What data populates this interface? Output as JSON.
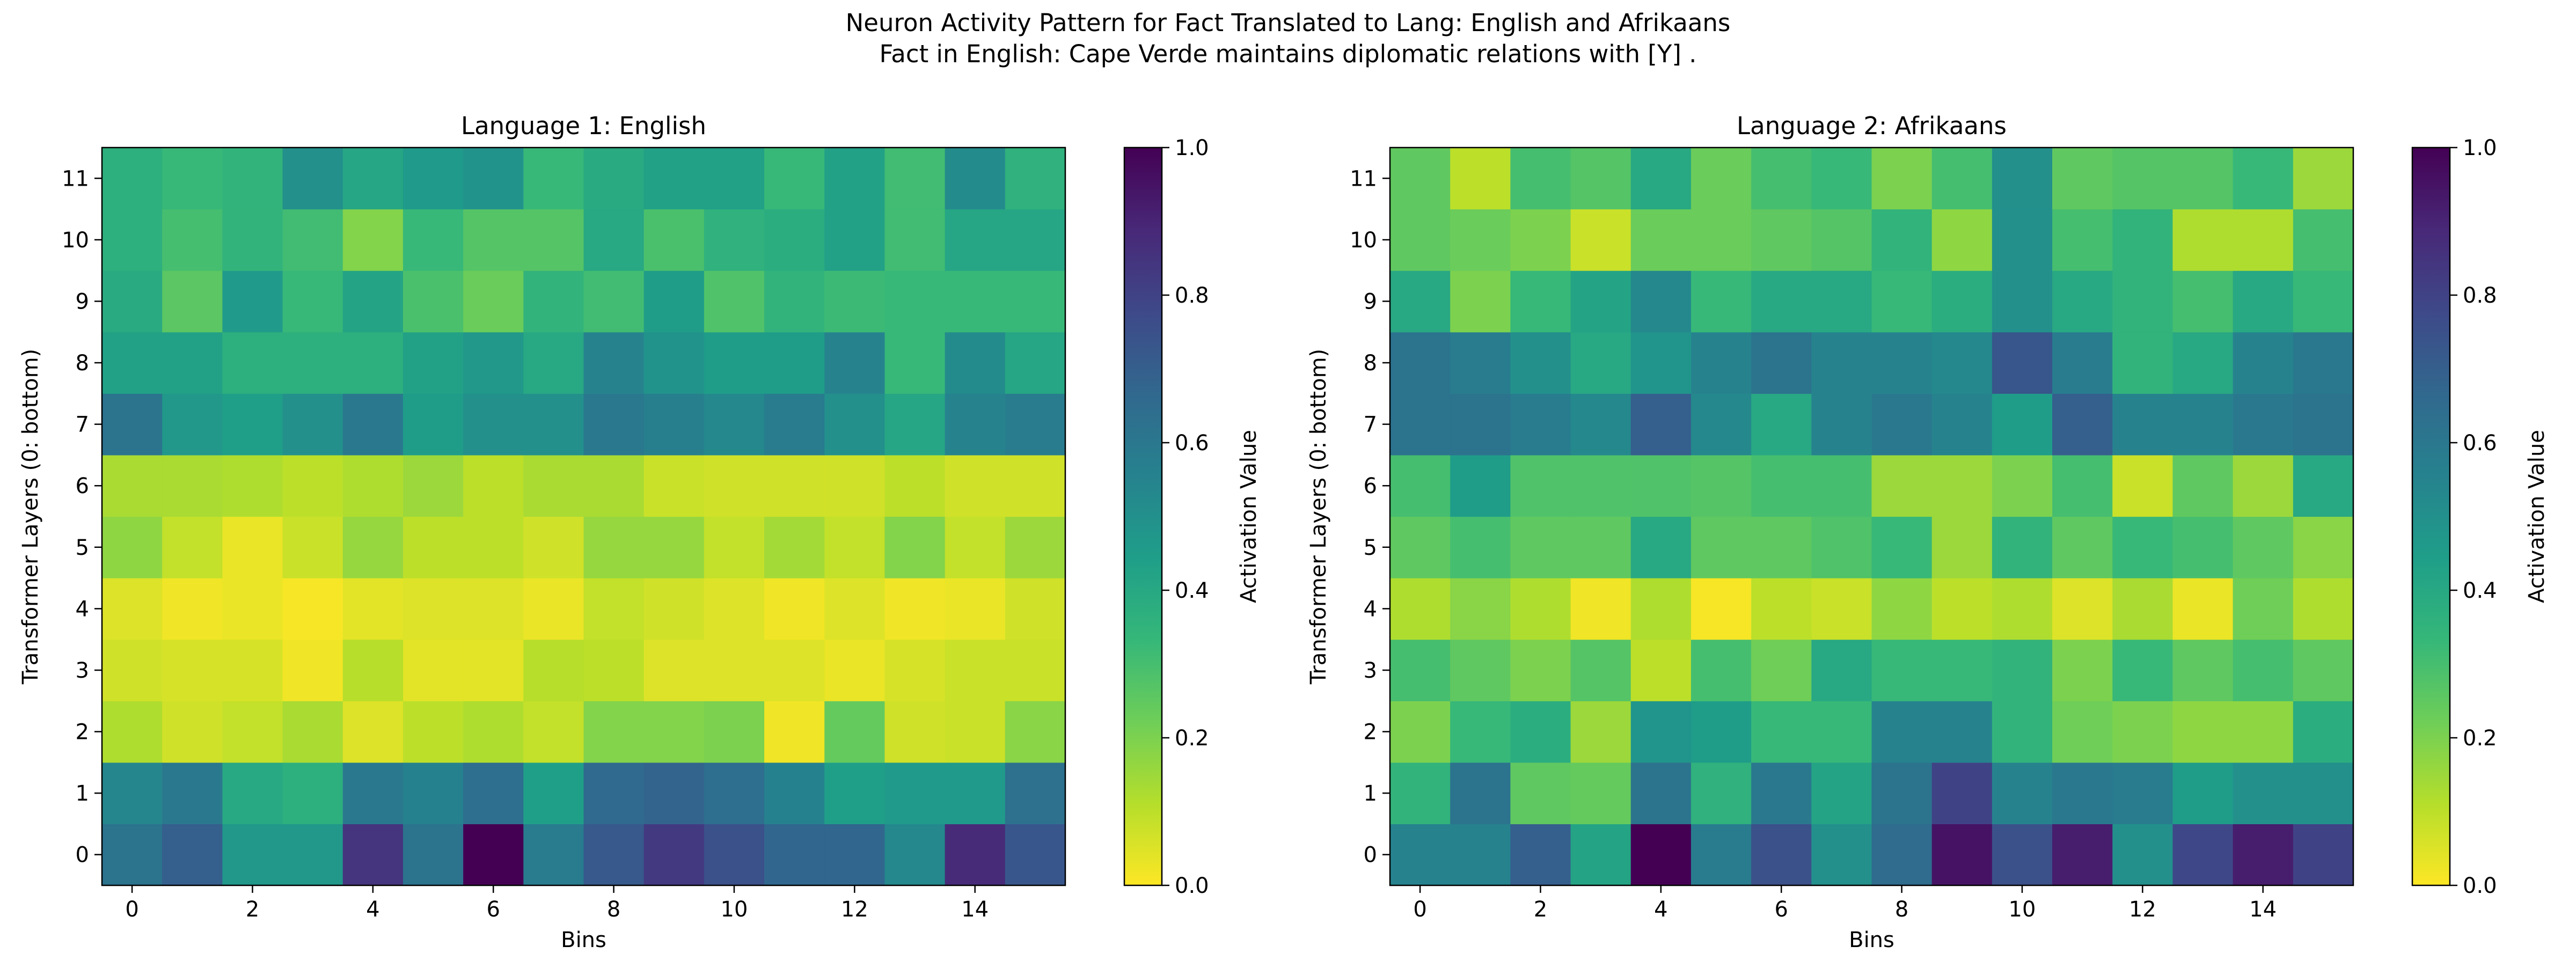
{
  "figure": {
    "title_line1": "Neuron Activity Pattern for Fact Translated to Lang: English and Afrikaans",
    "title_line2": "Fact in English: Cape Verde maintains diplomatic relations with [Y] ."
  },
  "colormap": {
    "name": "viridis_r",
    "stops": [
      "#fde725",
      "#b5de2b",
      "#6ece58",
      "#35b779",
      "#1f9e89",
      "#26828e",
      "#31688e",
      "#3e4989",
      "#482878",
      "#440154"
    ]
  },
  "chart_data": [
    {
      "type": "heatmap",
      "title": "Language 1: English",
      "xlabel": "Bins",
      "ylabel": "Transformer Layers (0: bottom)",
      "x_ticks": [
        0,
        2,
        4,
        6,
        8,
        10,
        12,
        14
      ],
      "y_ticks": [
        0,
        1,
        2,
        3,
        4,
        5,
        6,
        7,
        8,
        9,
        10,
        11
      ],
      "colorbar_label": "Activation Value",
      "colorbar_ticks": [
        "0.0",
        "0.2",
        "0.4",
        "0.6",
        "0.8",
        "1.0"
      ],
      "vmin": 0.0,
      "vmax": 1.0,
      "rows_bottom_to_top": [
        [
          0.62,
          0.7,
          0.47,
          0.47,
          0.85,
          0.62,
          1.0,
          0.58,
          0.72,
          0.83,
          0.75,
          0.67,
          0.67,
          0.53,
          0.88,
          0.73
        ],
        [
          0.54,
          0.6,
          0.4,
          0.37,
          0.6,
          0.56,
          0.64,
          0.44,
          0.66,
          0.68,
          0.64,
          0.56,
          0.44,
          0.46,
          0.46,
          0.63
        ],
        [
          0.12,
          0.07,
          0.09,
          0.13,
          0.05,
          0.1,
          0.12,
          0.09,
          0.19,
          0.19,
          0.2,
          0.02,
          0.24,
          0.07,
          0.08,
          0.18
        ],
        [
          0.07,
          0.06,
          0.06,
          0.02,
          0.11,
          0.04,
          0.04,
          0.11,
          0.1,
          0.05,
          0.05,
          0.05,
          0.03,
          0.06,
          0.08,
          0.08
        ],
        [
          0.05,
          0.02,
          0.03,
          0.01,
          0.04,
          0.05,
          0.05,
          0.03,
          0.09,
          0.07,
          0.05,
          0.02,
          0.05,
          0.02,
          0.03,
          0.07
        ],
        [
          0.17,
          0.09,
          0.03,
          0.08,
          0.16,
          0.1,
          0.1,
          0.07,
          0.16,
          0.16,
          0.09,
          0.14,
          0.09,
          0.19,
          0.09,
          0.15
        ],
        [
          0.13,
          0.13,
          0.12,
          0.1,
          0.12,
          0.15,
          0.1,
          0.13,
          0.13,
          0.08,
          0.07,
          0.07,
          0.07,
          0.1,
          0.07,
          0.07
        ],
        [
          0.62,
          0.47,
          0.44,
          0.5,
          0.6,
          0.45,
          0.5,
          0.5,
          0.6,
          0.57,
          0.53,
          0.58,
          0.5,
          0.41,
          0.55,
          0.58
        ],
        [
          0.43,
          0.43,
          0.37,
          0.37,
          0.37,
          0.43,
          0.47,
          0.4,
          0.55,
          0.49,
          0.45,
          0.45,
          0.55,
          0.33,
          0.52,
          0.41
        ],
        [
          0.39,
          0.26,
          0.46,
          0.33,
          0.42,
          0.29,
          0.23,
          0.35,
          0.31,
          0.45,
          0.28,
          0.35,
          0.32,
          0.33,
          0.33,
          0.33
        ],
        [
          0.37,
          0.3,
          0.35,
          0.31,
          0.19,
          0.33,
          0.27,
          0.27,
          0.4,
          0.29,
          0.36,
          0.38,
          0.43,
          0.31,
          0.41,
          0.41
        ],
        [
          0.37,
          0.33,
          0.35,
          0.5,
          0.41,
          0.46,
          0.49,
          0.33,
          0.39,
          0.43,
          0.43,
          0.33,
          0.43,
          0.31,
          0.52,
          0.36
        ]
      ]
    },
    {
      "type": "heatmap",
      "title": "Language 2: Afrikaans",
      "xlabel": "Bins",
      "ylabel": "Transformer Layers (0: bottom)",
      "x_ticks": [
        0,
        2,
        4,
        6,
        8,
        10,
        12,
        14
      ],
      "y_ticks": [
        0,
        1,
        2,
        3,
        4,
        5,
        6,
        7,
        8,
        9,
        10,
        11
      ],
      "colorbar_label": "Activation Value",
      "colorbar_ticks": [
        "0.0",
        "0.2",
        "0.4",
        "0.6",
        "0.8",
        "1.0"
      ],
      "vmin": 0.0,
      "vmax": 1.0,
      "rows_bottom_to_top": [
        [
          0.55,
          0.55,
          0.7,
          0.42,
          1.0,
          0.58,
          0.75,
          0.5,
          0.65,
          0.95,
          0.75,
          0.92,
          0.5,
          0.78,
          0.92,
          0.8
        ],
        [
          0.35,
          0.62,
          0.25,
          0.24,
          0.62,
          0.36,
          0.6,
          0.42,
          0.62,
          0.8,
          0.55,
          0.6,
          0.58,
          0.45,
          0.5,
          0.5
        ],
        [
          0.2,
          0.33,
          0.38,
          0.15,
          0.48,
          0.45,
          0.33,
          0.33,
          0.55,
          0.55,
          0.35,
          0.22,
          0.2,
          0.17,
          0.17,
          0.38
        ],
        [
          0.3,
          0.25,
          0.2,
          0.27,
          0.1,
          0.3,
          0.22,
          0.4,
          0.33,
          0.33,
          0.35,
          0.2,
          0.33,
          0.25,
          0.3,
          0.25
        ],
        [
          0.12,
          0.18,
          0.12,
          0.02,
          0.12,
          0.01,
          0.1,
          0.08,
          0.17,
          0.1,
          0.12,
          0.05,
          0.13,
          0.03,
          0.22,
          0.12
        ],
        [
          0.25,
          0.3,
          0.25,
          0.25,
          0.4,
          0.25,
          0.25,
          0.28,
          0.33,
          0.15,
          0.35,
          0.25,
          0.33,
          0.3,
          0.25,
          0.18
        ],
        [
          0.3,
          0.45,
          0.28,
          0.28,
          0.28,
          0.27,
          0.3,
          0.3,
          0.15,
          0.15,
          0.2,
          0.3,
          0.08,
          0.25,
          0.15,
          0.4
        ],
        [
          0.62,
          0.62,
          0.58,
          0.53,
          0.7,
          0.53,
          0.4,
          0.55,
          0.6,
          0.55,
          0.45,
          0.7,
          0.55,
          0.55,
          0.6,
          0.62
        ],
        [
          0.62,
          0.58,
          0.5,
          0.4,
          0.48,
          0.55,
          0.62,
          0.55,
          0.55,
          0.53,
          0.73,
          0.58,
          0.35,
          0.4,
          0.55,
          0.6
        ],
        [
          0.4,
          0.2,
          0.33,
          0.42,
          0.53,
          0.33,
          0.4,
          0.4,
          0.33,
          0.38,
          0.5,
          0.4,
          0.35,
          0.3,
          0.4,
          0.33
        ],
        [
          0.25,
          0.23,
          0.2,
          0.08,
          0.23,
          0.23,
          0.25,
          0.27,
          0.35,
          0.17,
          0.5,
          0.3,
          0.35,
          0.12,
          0.12,
          0.3
        ],
        [
          0.25,
          0.1,
          0.3,
          0.27,
          0.4,
          0.23,
          0.3,
          0.33,
          0.2,
          0.3,
          0.5,
          0.25,
          0.27,
          0.27,
          0.33,
          0.15
        ]
      ]
    }
  ]
}
